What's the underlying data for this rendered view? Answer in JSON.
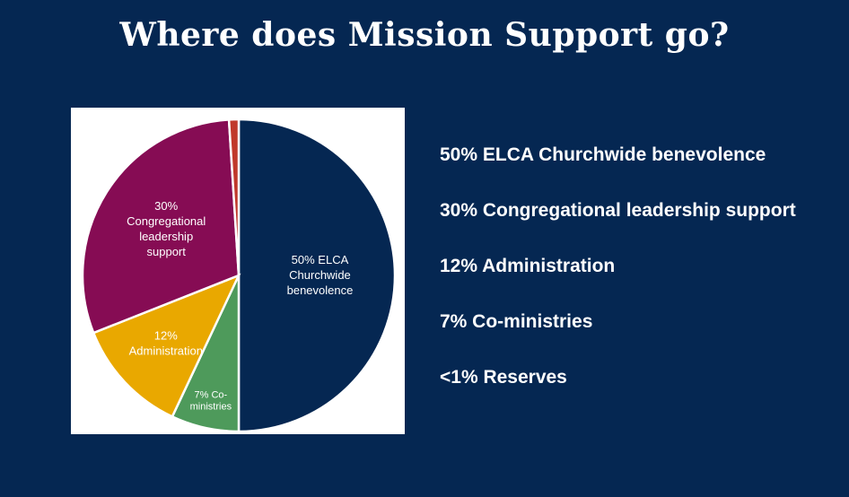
{
  "page": {
    "title": "Where does Mission Support go?"
  },
  "legend_items": [
    "50% ELCA Churchwide benevolence",
    "30% Congregational leadership support",
    "12% Administration",
    "7% Co-ministries",
    "<1% Reserves"
  ],
  "chart_data": {
    "type": "pie",
    "slices": [
      {
        "name": "ELCA Churchwide benevolence",
        "value": 50,
        "color": "#052752",
        "label_lines": [
          "50% ELCA",
          "Churchwide",
          "benevolence"
        ]
      },
      {
        "name": "Co-ministries",
        "value": 7,
        "color": "#4e9a5b",
        "label_lines": [
          "7% Co-",
          "ministries"
        ]
      },
      {
        "name": "Administration",
        "value": 12,
        "color": "#e9a800",
        "label_lines": [
          "12%",
          "Administration"
        ]
      },
      {
        "name": "Congregational leadership support",
        "value": 30,
        "color": "#860c54",
        "label_lines": [
          "30%",
          "Congregational",
          "leadership",
          "support"
        ]
      },
      {
        "name": "Reserves",
        "value": 1,
        "color": "#c0392b",
        "label_lines": []
      }
    ]
  }
}
